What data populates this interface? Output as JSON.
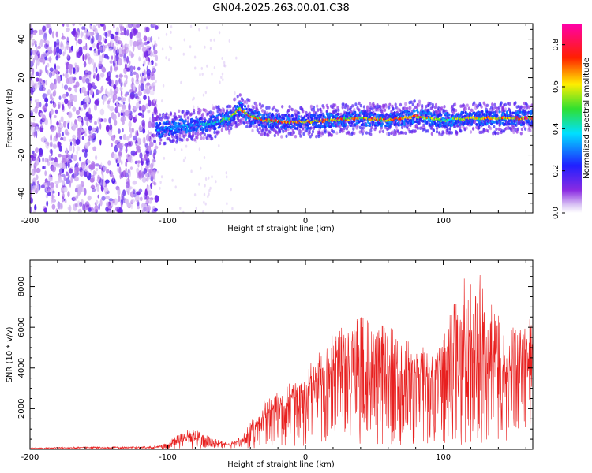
{
  "title": "GN04.2025.263.00.01.C38",
  "colors": {
    "snr_line": "#e8201f",
    "axes": "#000000"
  },
  "chart_data": [
    {
      "type": "heatmap",
      "name": "spectrogram",
      "xlabel": "Height of straight line (km)",
      "ylabel": "Frequency (Hz)",
      "xlim": [
        -200,
        165
      ],
      "ylim": [
        -50,
        48
      ],
      "xticks": [
        -200,
        -100,
        0,
        100
      ],
      "yticks": [
        -40,
        -20,
        0,
        20,
        40
      ],
      "colorbar": {
        "label": "Normalized spectral amplitude",
        "range": [
          0.0,
          0.9
        ],
        "ticks": [
          0.0,
          0.2,
          0.4,
          0.6,
          0.8
        ],
        "colormap": "rainbow (violet → blue → cyan → green → yellow → red → magenta)"
      },
      "features": [
        {
          "description": "noise-dominated scatter",
          "x_range": [
            -200,
            -108
          ],
          "freq_range": [
            -50,
            48
          ],
          "amplitude": 0.1
        },
        {
          "description": "carrier line",
          "x": [
            -105,
            -90,
            -70,
            -55,
            -48,
            -40,
            -30,
            -10,
            0,
            20,
            40,
            60,
            80,
            100,
            120,
            140,
            160
          ],
          "freq": [
            -7,
            -5,
            -4,
            -1,
            4,
            0,
            -2,
            -3,
            -3,
            -2,
            -1,
            -2,
            0,
            -2,
            -1,
            -1,
            -1
          ],
          "peak_amplitude": [
            0.4,
            0.4,
            0.45,
            0.6,
            0.85,
            0.8,
            0.8,
            0.85,
            0.8,
            0.85,
            0.8,
            0.8,
            0.85,
            0.55,
            0.75,
            0.8,
            0.85
          ]
        }
      ]
    },
    {
      "type": "line",
      "name": "snr",
      "xlabel": "Height of straight line (km)",
      "ylabel": "SNR (10 * v/v)",
      "xlim": [
        -200,
        165
      ],
      "ylim": [
        0,
        9300
      ],
      "xticks": [
        -200,
        -100,
        0,
        100
      ],
      "yticks": [
        2000,
        4000,
        6000,
        8000
      ],
      "series": [
        {
          "name": "SNR",
          "x": [
            -200,
            -180,
            -160,
            -140,
            -120,
            -105,
            -95,
            -85,
            -75,
            -65,
            -55,
            -45,
            -35,
            -25,
            -15,
            -5,
            5,
            15,
            25,
            35,
            45,
            55,
            65,
            75,
            85,
            95,
            105,
            115,
            125,
            135,
            145,
            155,
            165
          ],
          "envelope": [
            80,
            100,
            130,
            130,
            130,
            180,
            600,
            1000,
            900,
            500,
            300,
            800,
            1900,
            2900,
            3100,
            3700,
            4400,
            5200,
            6100,
            6500,
            6700,
            6200,
            6000,
            5600,
            5200,
            4600,
            6700,
            8500,
            8900,
            7300,
            5900,
            6200,
            6500
          ],
          "center": [
            60,
            70,
            90,
            90,
            90,
            120,
            350,
            600,
            550,
            300,
            200,
            500,
            1200,
            1900,
            2200,
            2700,
            3200,
            3700,
            4100,
            4200,
            4200,
            4000,
            3900,
            3700,
            3700,
            3300,
            4000,
            4600,
            4700,
            4200,
            3800,
            3800,
            4000
          ]
        }
      ]
    }
  ]
}
